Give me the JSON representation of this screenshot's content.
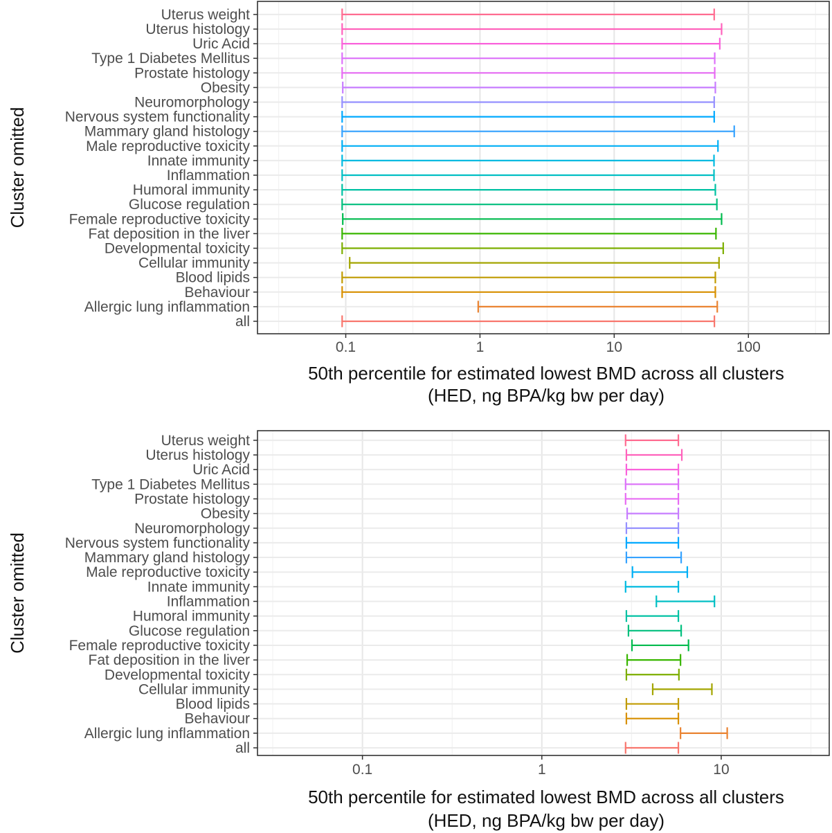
{
  "chart_data": [
    {
      "type": "errorbar",
      "categories": [
        "all",
        "Allergic lung inflammation",
        "Behaviour",
        "Blood lipids",
        "Cellular immunity",
        "Developmental toxicity",
        "Fat deposition in the liver",
        "Female reproductive toxicity",
        "Glucose regulation",
        "Humoral immunity",
        "Inflammation",
        "Innate immunity",
        "Male reproductive toxicity",
        "Mammary gland histology",
        "Nervous system functionality",
        "Neuromorphology",
        "Obesity",
        "Prostate histology",
        "Type 1 Diabetes Mellitus",
        "Uric Acid",
        "Uterus histology",
        "Uterus weight"
      ],
      "lower": [
        0.094,
        0.97,
        0.094,
        0.094,
        0.107,
        0.094,
        0.094,
        0.095,
        0.094,
        0.094,
        0.094,
        0.094,
        0.094,
        0.094,
        0.094,
        0.094,
        0.095,
        0.094,
        0.094,
        0.094,
        0.094,
        0.094
      ],
      "upper": [
        55.8,
        58.6,
        56.7,
        56.7,
        60.4,
        64.9,
        57.3,
        63.1,
        58.2,
        56.7,
        55.4,
        55.4,
        59.3,
        78.4,
        55.6,
        55.6,
        56.7,
        56.1,
        56.1,
        61.2,
        63.1,
        55.6
      ],
      "colors": [
        "#F8766D",
        "#EA8331",
        "#D89000",
        "#C09B00",
        "#A3A500",
        "#7CAE00",
        "#39B600",
        "#00BB4E",
        "#00BF7D",
        "#00C1A3",
        "#00BFC4",
        "#00BAE0",
        "#00B0F6",
        "#35A2FF",
        "#00A9FF",
        "#9590FF",
        "#C77CFF",
        "#E76BF3",
        "#DD71FA",
        "#FA62DB",
        "#FF62BC",
        "#FF6C91"
      ],
      "x_scale": "log",
      "xlim": [
        0.022,
        400
      ],
      "xticks": [
        "0.1",
        "1",
        "10",
        "100"
      ],
      "xtick_values": [
        0.1,
        1,
        10,
        100
      ],
      "xlabel_line1": "50th percentile for estimated lowest BMD across all clusters",
      "xlabel_line2": "(HED, ng BPA/kg bw per day)",
      "ylabel": "Cluster omitted",
      "grid": true
    },
    {
      "type": "errorbar",
      "categories": [
        "all",
        "Allergic lung inflammation",
        "Behaviour",
        "Blood lipids",
        "Cellular immunity",
        "Developmental toxicity",
        "Fat deposition in the liver",
        "Female reproductive toxicity",
        "Glucose regulation",
        "Humoral immunity",
        "Inflammation",
        "Innate immunity",
        "Male reproductive toxicity",
        "Mammary gland histology",
        "Nervous system functionality",
        "Neuromorphology",
        "Obesity",
        "Prostate histology",
        "Type 1 Diabetes Mellitus",
        "Uric Acid",
        "Uterus histology",
        "Uterus weight"
      ],
      "lower": [
        2.93,
        5.93,
        2.96,
        2.96,
        4.15,
        2.96,
        2.99,
        3.18,
        3.04,
        2.96,
        4.35,
        2.93,
        3.2,
        2.96,
        2.96,
        2.96,
        2.99,
        2.93,
        2.93,
        2.96,
        2.96,
        2.93
      ],
      "upper": [
        5.77,
        10.8,
        5.77,
        5.77,
        8.87,
        5.81,
        5.93,
        6.57,
        5.98,
        5.77,
        9.17,
        5.77,
        6.47,
        5.98,
        5.77,
        5.77,
        5.77,
        5.77,
        5.77,
        5.77,
        6.03,
        5.77
      ],
      "colors": [
        "#F8766D",
        "#EA8331",
        "#D89000",
        "#C09B00",
        "#A3A500",
        "#7CAE00",
        "#39B600",
        "#00BB4E",
        "#00BF7D",
        "#00C1A3",
        "#00BFC4",
        "#00BAE0",
        "#00B0F6",
        "#35A2FF",
        "#00A9FF",
        "#9590FF",
        "#C77CFF",
        "#E76BF3",
        "#DD71FA",
        "#FA62DB",
        "#FF62BC",
        "#FF6C91"
      ],
      "x_scale": "log",
      "xlim": [
        0.026,
        40
      ],
      "xticks": [
        "0.1",
        "1",
        "10"
      ],
      "xtick_values": [
        0.1,
        1,
        10
      ],
      "xlabel_line1": "50th percentile for estimated lowest BMD across all clusters",
      "xlabel_line2": "(HED, ng BPA/kg bw per day)",
      "ylabel": "Cluster omitted",
      "grid": true
    }
  ]
}
